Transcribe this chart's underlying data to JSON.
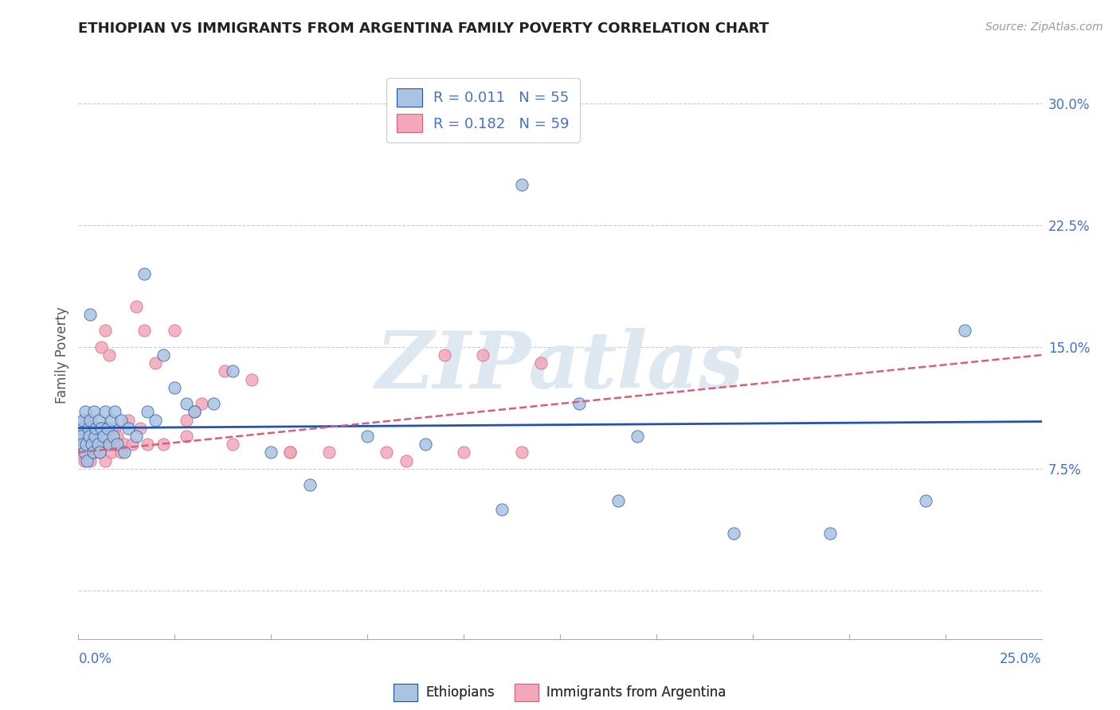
{
  "title": "ETHIOPIAN VS IMMIGRANTS FROM ARGENTINA FAMILY POVERTY CORRELATION CHART",
  "source": "Source: ZipAtlas.com",
  "ylabel": "Family Poverty",
  "legend_label1": "Ethiopians",
  "legend_label2": "Immigrants from Argentina",
  "r1": 0.011,
  "n1": 55,
  "r2": 0.182,
  "n2": 59,
  "color1": "#a8c4e0",
  "color2": "#f4a7b9",
  "trendline1_color": "#2255aa",
  "trendline2_color": "#d4607a",
  "xmin": 0.0,
  "xmax": 25.0,
  "ymin": -3.0,
  "ymax": 32.0,
  "yticks": [
    0.0,
    7.5,
    15.0,
    22.5,
    30.0
  ],
  "ytick_labels": [
    "",
    "7.5%",
    "15.0%",
    "22.5%",
    "30.0%"
  ],
  "bg_color": "#ffffff",
  "grid_color": "#cccccc",
  "watermark_text": "ZIPatlas",
  "watermark_color": "#dde8f0",
  "eth_x": [
    0.05,
    0.08,
    0.1,
    0.12,
    0.15,
    0.18,
    0.2,
    0.22,
    0.25,
    0.28,
    0.3,
    0.35,
    0.38,
    0.4,
    0.42,
    0.45,
    0.5,
    0.52,
    0.55,
    0.6,
    0.65,
    0.7,
    0.75,
    0.8,
    0.85,
    0.9,
    0.95,
    1.0,
    1.1,
    1.2,
    1.3,
    1.5,
    1.7,
    1.8,
    2.0,
    2.2,
    2.5,
    2.8,
    3.0,
    3.5,
    4.0,
    5.0,
    6.0,
    7.5,
    9.0,
    11.0,
    13.0,
    14.5,
    17.0,
    19.5,
    22.0,
    23.0,
    11.5,
    14.0,
    0.3
  ],
  "eth_y": [
    10.0,
    9.5,
    9.0,
    10.5,
    8.5,
    11.0,
    9.0,
    8.0,
    10.0,
    9.5,
    10.5,
    9.0,
    8.5,
    11.0,
    9.5,
    10.0,
    9.0,
    10.5,
    8.5,
    10.0,
    9.5,
    11.0,
    10.0,
    9.0,
    10.5,
    9.5,
    11.0,
    9.0,
    10.5,
    8.5,
    10.0,
    9.5,
    19.5,
    11.0,
    10.5,
    14.5,
    12.5,
    11.5,
    11.0,
    11.5,
    13.5,
    8.5,
    6.5,
    9.5,
    9.0,
    5.0,
    11.5,
    9.5,
    3.5,
    3.5,
    5.5,
    16.0,
    25.0,
    5.5,
    17.0
  ],
  "arg_x": [
    0.05,
    0.08,
    0.1,
    0.12,
    0.15,
    0.18,
    0.2,
    0.22,
    0.25,
    0.28,
    0.3,
    0.32,
    0.35,
    0.38,
    0.4,
    0.42,
    0.45,
    0.5,
    0.55,
    0.6,
    0.65,
    0.7,
    0.75,
    0.8,
    0.85,
    0.9,
    0.95,
    1.0,
    1.1,
    1.2,
    1.3,
    1.5,
    1.7,
    1.8,
    2.0,
    2.2,
    2.5,
    2.8,
    3.2,
    3.8,
    4.5,
    5.5,
    6.5,
    8.0,
    9.5,
    11.5,
    2.8,
    3.0,
    1.4,
    1.6,
    0.6,
    0.7,
    0.8,
    4.0,
    5.5,
    8.5,
    10.5,
    10.0,
    12.0
  ],
  "arg_y": [
    9.0,
    8.5,
    10.0,
    9.5,
    8.0,
    10.5,
    9.0,
    8.5,
    10.0,
    9.5,
    8.0,
    9.0,
    9.5,
    10.0,
    8.5,
    9.0,
    9.5,
    10.0,
    8.5,
    9.0,
    9.5,
    8.0,
    10.0,
    9.5,
    8.5,
    9.0,
    10.0,
    9.5,
    8.5,
    9.0,
    10.5,
    17.5,
    16.0,
    9.0,
    14.0,
    9.0,
    16.0,
    9.5,
    11.5,
    13.5,
    13.0,
    8.5,
    8.5,
    8.5,
    14.5,
    8.5,
    10.5,
    11.0,
    9.0,
    10.0,
    15.0,
    16.0,
    14.5,
    9.0,
    8.5,
    8.0,
    14.5,
    8.5,
    14.0
  ],
  "eth_trend_x0": 0.0,
  "eth_trend_x1": 25.0,
  "eth_trend_y0": 10.0,
  "eth_trend_y1": 10.4,
  "arg_trend_x0": 0.0,
  "arg_trend_x1": 25.0,
  "arg_trend_y0": 8.5,
  "arg_trend_y1": 14.5
}
